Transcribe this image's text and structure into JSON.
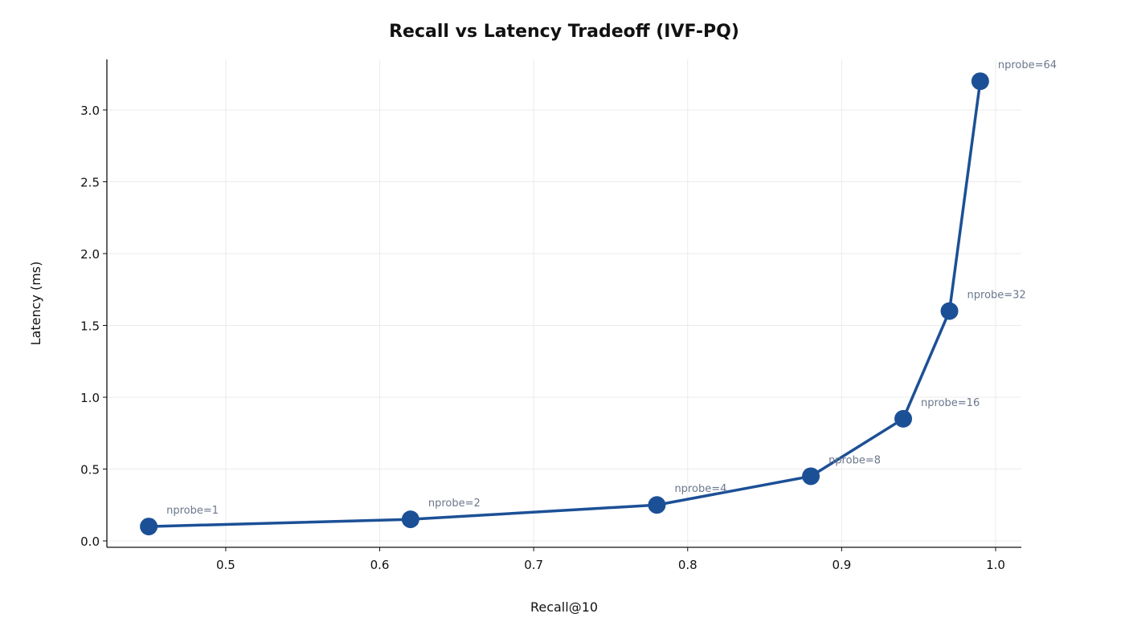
{
  "chart_data": {
    "type": "line",
    "title": "Recall vs Latency Tradeoff (IVF-PQ)",
    "x_label": "Recall@10",
    "y_label": "Latency (ms)",
    "x": [
      0.45,
      0.62,
      0.78,
      0.88,
      0.94,
      0.97,
      0.99
    ],
    "series": [
      {
        "name": "IVF-PQ",
        "color": "#1c5096",
        "values": [
          0.1,
          0.15,
          0.25,
          0.45,
          0.85,
          1.6,
          3.2
        ]
      }
    ],
    "point_labels": [
      "nprobe=1",
      "nprobe=2",
      "nprobe=4",
      "nprobe=8",
      "nprobe=16",
      "nprobe=32",
      "nprobe=64"
    ],
    "xlim": [
      0.4228,
      1.0167
    ],
    "ylim": [
      -0.0447,
      3.352
    ],
    "xticks": [
      0.5,
      0.6,
      0.7,
      0.8,
      0.9,
      {
        "value": 1.0,
        "label": "1.0"
      }
    ],
    "yticks": [
      {
        "value": 0.0,
        "label": "0.0"
      },
      0.5,
      {
        "value": 1.0,
        "label": "1.0"
      },
      1.5,
      {
        "value": 2.0,
        "label": "2.0"
      },
      2.5,
      {
        "value": 3.0,
        "label": "3.0"
      }
    ],
    "grid": true
  }
}
